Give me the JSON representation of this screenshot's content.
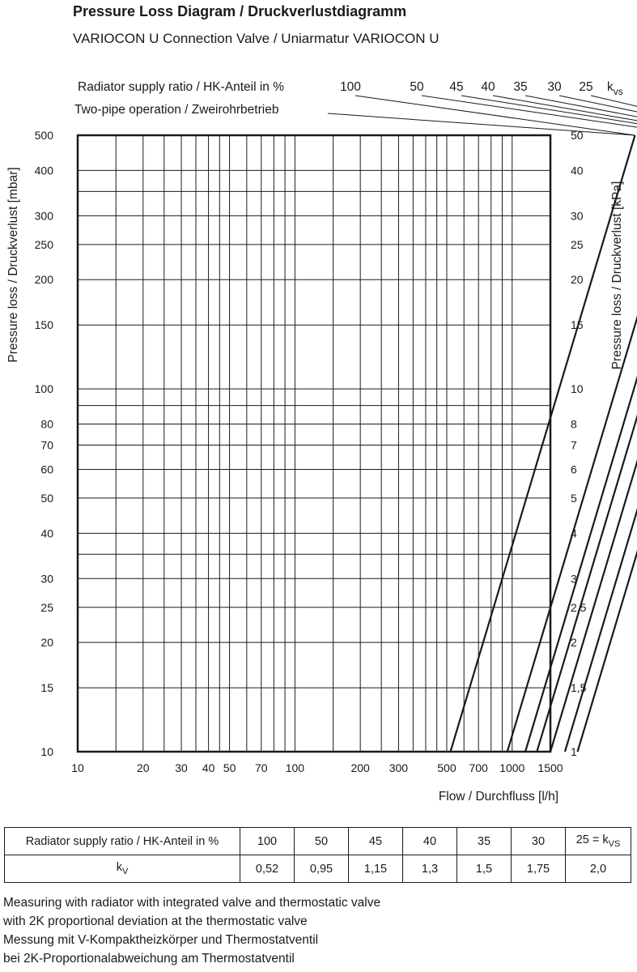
{
  "title": "Pressure Loss Diagram / Druckverlustdiagramm",
  "subtitle": "VARIOCON U Connection Valve / Uniarmatur VARIOCON U",
  "legend_title_line1": "Radiator supply ratio / HK-Anteil in %",
  "legend_title_line2": "Two-pipe operation / Zweirohrbetrieb",
  "kvs_label_k": "k",
  "kvs_label_sub": "vs",
  "chart_data": {
    "type": "line",
    "xscale": "log",
    "yscale": "log",
    "xlim": [
      10,
      1500
    ],
    "ylim": [
      10,
      500
    ],
    "y2lim": [
      1,
      50
    ],
    "xlabel": "Flow / Durchfluss [l/h]",
    "ylabel": "Pressure loss / Druckverlust [mbar]",
    "y2label": "Pressure loss / Druckverlust [kPa]",
    "x_ticks": [
      "10",
      "20",
      "30",
      "40",
      "50",
      "70",
      "100",
      "200",
      "300",
      "500",
      "700",
      "1000",
      "1500"
    ],
    "x_tick_values": [
      10,
      20,
      30,
      40,
      50,
      70,
      100,
      200,
      300,
      500,
      700,
      1000,
      1500
    ],
    "x_grid": [
      10,
      15,
      20,
      25,
      30,
      35,
      40,
      45,
      50,
      60,
      70,
      80,
      90,
      100,
      150,
      200,
      250,
      300,
      350,
      400,
      450,
      500,
      600,
      700,
      800,
      900,
      1000,
      1500
    ],
    "y_ticks": [
      "10",
      "15",
      "20",
      "25",
      "30",
      "40",
      "50",
      "60",
      "70",
      "80",
      "100",
      "150",
      "200",
      "250",
      "300",
      "400",
      "500"
    ],
    "y_tick_values": [
      10,
      15,
      20,
      25,
      30,
      40,
      50,
      60,
      70,
      80,
      100,
      150,
      200,
      250,
      300,
      400,
      500
    ],
    "y2_ticks": [
      "1",
      "1,5",
      "2",
      "2,5",
      "3",
      "4",
      "5",
      "6",
      "7",
      "8",
      "10",
      "15",
      "20",
      "25",
      "30",
      "40",
      "50"
    ],
    "y_grid": [
      10,
      15,
      20,
      25,
      30,
      35,
      40,
      50,
      60,
      70,
      80,
      90,
      100,
      150,
      200,
      250,
      300,
      350,
      400,
      500
    ],
    "series": [
      {
        "name": "100",
        "kv": 0.52
      },
      {
        "name": "50",
        "kv": 0.95
      },
      {
        "name": "45",
        "kv": 1.15
      },
      {
        "name": "40",
        "kv": 1.3
      },
      {
        "name": "35",
        "kv": 1.5
      },
      {
        "name": "30",
        "kv": 1.75
      },
      {
        "name": "25",
        "kv": 2.0
      }
    ]
  },
  "table": {
    "row1_header": "Radiator supply ratio / HK-Anteil in %",
    "row1_values": [
      "100",
      "50",
      "45",
      "40",
      "35",
      "30"
    ],
    "row1_last": "25 = k",
    "row1_last_sub": "VS",
    "row2_header": "k",
    "row2_header_sub": "V",
    "row2_values": [
      "0,52",
      "0,95",
      "1,15",
      "1,3",
      "1,5",
      "1,75",
      "2,0"
    ]
  },
  "notes": [
    "Measuring with radiator with integrated valve and thermostatic valve",
    "with 2K proportional deviation at the thermostatic valve",
    "Messung mit V-Kompaktheizkörper und Thermostatventil",
    "bei 2K-Proportionalabweichung am Thermostatventil"
  ]
}
